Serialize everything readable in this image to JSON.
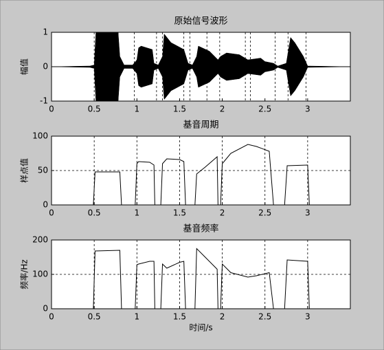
{
  "chart_data": [
    {
      "type": "area",
      "title": "原始信号波形",
      "y_label": "幅值",
      "color": "#000000",
      "grid": false,
      "x": [
        0,
        0.45,
        0.5,
        0.52,
        0.78,
        0.8,
        0.85,
        0.95,
        1.0,
        1.02,
        1.05,
        1.18,
        1.2,
        1.25,
        1.3,
        1.32,
        1.4,
        1.55,
        1.6,
        1.65,
        1.7,
        1.72,
        1.85,
        1.95,
        1.98,
        2.05,
        2.2,
        2.3,
        2.45,
        2.5,
        2.6,
        2.65,
        2.75,
        2.8,
        2.85,
        2.95,
        3.0,
        3.5
      ],
      "values": [
        0,
        0.02,
        0.05,
        1,
        1,
        0.3,
        0.05,
        0.05,
        0.2,
        0.55,
        0.6,
        0.5,
        0.1,
        0.05,
        0.3,
        0.95,
        0.7,
        0.5,
        0.1,
        0.05,
        0.3,
        0.6,
        0.45,
        0.2,
        0.3,
        0.4,
        0.35,
        0.2,
        0.25,
        0.15,
        0.1,
        0.02,
        0.1,
        0.85,
        0.7,
        0.3,
        0.02,
        0
      ],
      "markers": [
        0.5,
        0.78,
        0.97,
        1.23,
        1.3,
        1.55,
        1.62,
        1.82,
        1.97,
        2.27,
        2.33,
        2.62,
        2.77,
        2.98
      ],
      "xlim": [
        0,
        3.5
      ],
      "xticks": [
        0,
        0.5,
        1,
        1.5,
        2,
        2.5,
        3
      ],
      "ylim": [
        -1,
        1
      ],
      "yticks": [
        -1,
        0,
        1
      ]
    },
    {
      "type": "line",
      "title": "基音周期",
      "y_label": "样点值",
      "color": "#000000",
      "grid": true,
      "x": [
        0.49,
        0.51,
        0.8,
        0.82,
        null,
        0.98,
        1.0,
        1.02,
        1.15,
        1.2,
        1.21,
        null,
        1.28,
        1.3,
        1.35,
        1.5,
        1.55,
        1.57,
        null,
        1.68,
        1.7,
        1.8,
        1.94,
        1.95,
        null,
        1.98,
        2.0,
        2.1,
        2.3,
        2.4,
        2.55,
        2.6,
        null,
        2.73,
        2.76,
        3.0,
        3.02
      ],
      "values": [
        0,
        48,
        48,
        0,
        null,
        0,
        60,
        63,
        62,
        58,
        0,
        null,
        0,
        60,
        67,
        66,
        63,
        0,
        null,
        0,
        45,
        55,
        70,
        0,
        null,
        0,
        60,
        75,
        88,
        85,
        78,
        0,
        null,
        0,
        57,
        58,
        0
      ],
      "xlim": [
        0,
        3.5
      ],
      "xticks": [
        0,
        0.5,
        1,
        1.5,
        2,
        2.5,
        3
      ],
      "ylim": [
        0,
        100
      ],
      "yticks": [
        0,
        50,
        100
      ]
    },
    {
      "type": "line",
      "title": "基音频率",
      "y_label": "频率/Hz",
      "x_label": "时间/s",
      "color": "#000000",
      "grid": true,
      "x": [
        0.49,
        0.51,
        0.8,
        0.82,
        null,
        0.98,
        1.0,
        1.02,
        1.15,
        1.2,
        1.21,
        null,
        1.28,
        1.3,
        1.35,
        1.5,
        1.55,
        1.57,
        null,
        1.68,
        1.7,
        1.8,
        1.94,
        1.95,
        null,
        1.98,
        2.0,
        2.1,
        2.3,
        2.4,
        2.55,
        2.6,
        null,
        2.73,
        2.76,
        3.0,
        3.02
      ],
      "values": [
        0,
        168,
        170,
        0,
        null,
        0,
        128,
        130,
        138,
        138,
        0,
        null,
        0,
        130,
        118,
        135,
        138,
        0,
        null,
        0,
        175,
        150,
        115,
        0,
        null,
        0,
        130,
        105,
        92,
        96,
        105,
        0,
        null,
        0,
        142,
        138,
        0
      ],
      "xlim": [
        0,
        3.5
      ],
      "xticks": [
        0,
        0.5,
        1,
        1.5,
        2,
        2.5,
        3
      ],
      "ylim": [
        0,
        200
      ],
      "yticks": [
        0,
        100,
        200
      ]
    }
  ]
}
